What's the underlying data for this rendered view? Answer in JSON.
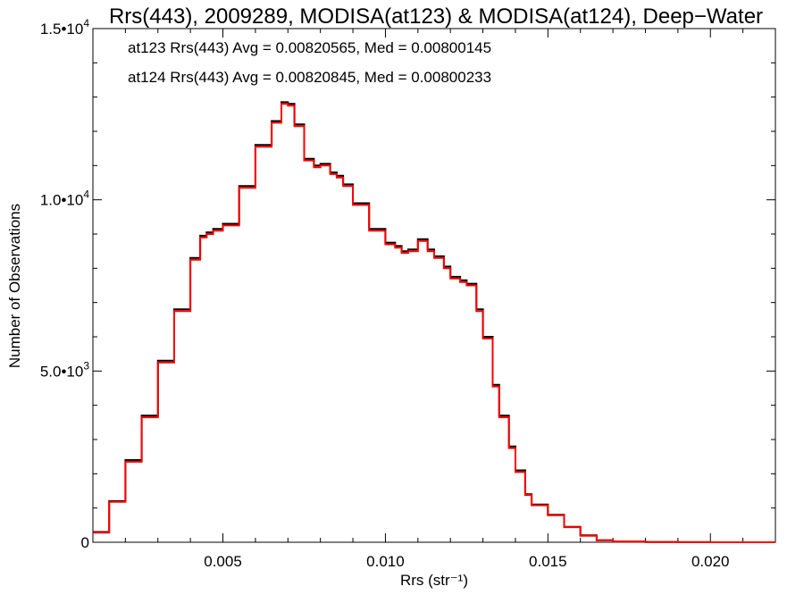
{
  "chart_data": {
    "type": "line",
    "title": "Rrs(443), 2009289, MODISA(at123) & MODISA(at124), Deep−Water",
    "xlabel": "Rrs (str⁻¹)",
    "ylabel": "Number of Observations",
    "xlim": [
      0.001,
      0.022
    ],
    "ylim": [
      0,
      15000
    ],
    "x_ticks": [
      {
        "value": 0.005,
        "label": "0.005"
      },
      {
        "value": 0.01,
        "label": "0.010"
      },
      {
        "value": 0.015,
        "label": "0.015"
      },
      {
        "value": 0.02,
        "label": "0.020"
      }
    ],
    "y_ticks": [
      {
        "value": 0,
        "label": "0"
      },
      {
        "value": 5000,
        "label": "5.0•",
        "exp": "10",
        "sup": "3"
      },
      {
        "value": 10000,
        "label": "1.0•",
        "exp": "10",
        "sup": "4"
      },
      {
        "value": 15000,
        "label": "1.5•",
        "exp": "10",
        "sup": "4"
      }
    ],
    "annotations": [
      {
        "text": "at123 Rrs(443) Avg = 0.00820565, Med = 0.00800145",
        "color": "#000000"
      },
      {
        "text": "at124 Rrs(443) Avg = 0.00820845, Med = 0.00800233",
        "color": "#ff0000"
      }
    ],
    "grid": false,
    "series": [
      {
        "color": "#000000",
        "x": [
          0.001,
          0.0015,
          0.002,
          0.0025,
          0.003,
          0.0035,
          0.004,
          0.0043,
          0.0045,
          0.0047,
          0.005,
          0.0055,
          0.006,
          0.0065,
          0.0068,
          0.007,
          0.0072,
          0.0075,
          0.0078,
          0.008,
          0.0083,
          0.0085,
          0.0087,
          0.009,
          0.0095,
          0.01,
          0.0103,
          0.0105,
          0.0107,
          0.011,
          0.0113,
          0.0115,
          0.0118,
          0.012,
          0.0123,
          0.0125,
          0.0128,
          0.013,
          0.0133,
          0.0135,
          0.0138,
          0.014,
          0.0143,
          0.0145,
          0.015,
          0.0155,
          0.016,
          0.0165,
          0.017,
          0.018,
          0.019,
          0.02,
          0.021,
          0.022
        ],
        "y": [
          300,
          1200,
          2400,
          3700,
          5300,
          6800,
          8300,
          8950,
          9050,
          9150,
          9300,
          10400,
          11600,
          12300,
          12850,
          12800,
          12200,
          11200,
          11000,
          11050,
          10800,
          10700,
          10450,
          9900,
          9150,
          8750,
          8650,
          8500,
          8550,
          8850,
          8550,
          8350,
          8050,
          7750,
          7650,
          7550,
          6800,
          6000,
          4600,
          3700,
          2800,
          2100,
          1400,
          1100,
          800,
          450,
          200,
          60,
          20,
          8,
          3,
          1,
          0,
          0
        ]
      },
      {
        "color": "#ff0000",
        "x": [
          0.001,
          0.0015,
          0.002,
          0.0025,
          0.003,
          0.0035,
          0.004,
          0.0043,
          0.0045,
          0.0047,
          0.005,
          0.0055,
          0.006,
          0.0065,
          0.0068,
          0.007,
          0.0072,
          0.0075,
          0.0078,
          0.008,
          0.0083,
          0.0085,
          0.0087,
          0.009,
          0.0095,
          0.01,
          0.0103,
          0.0105,
          0.0107,
          0.011,
          0.0113,
          0.0115,
          0.0118,
          0.012,
          0.0123,
          0.0125,
          0.0128,
          0.013,
          0.0133,
          0.0135,
          0.0138,
          0.014,
          0.0143,
          0.0145,
          0.015,
          0.0155,
          0.016,
          0.0165,
          0.017,
          0.018,
          0.019,
          0.02,
          0.021,
          0.022
        ],
        "y": [
          280,
          1180,
          2350,
          3650,
          5250,
          6750,
          8250,
          8900,
          9000,
          9100,
          9250,
          10350,
          11550,
          12250,
          12800,
          12750,
          12150,
          11150,
          10950,
          11000,
          10750,
          10650,
          10400,
          9850,
          9100,
          8700,
          8600,
          8450,
          8500,
          8800,
          8500,
          8300,
          8000,
          7700,
          7600,
          7500,
          6750,
          5950,
          4550,
          3650,
          2750,
          2050,
          1380,
          1080,
          790,
          440,
          190,
          55,
          18,
          7,
          2,
          1,
          0,
          0
        ]
      }
    ]
  }
}
